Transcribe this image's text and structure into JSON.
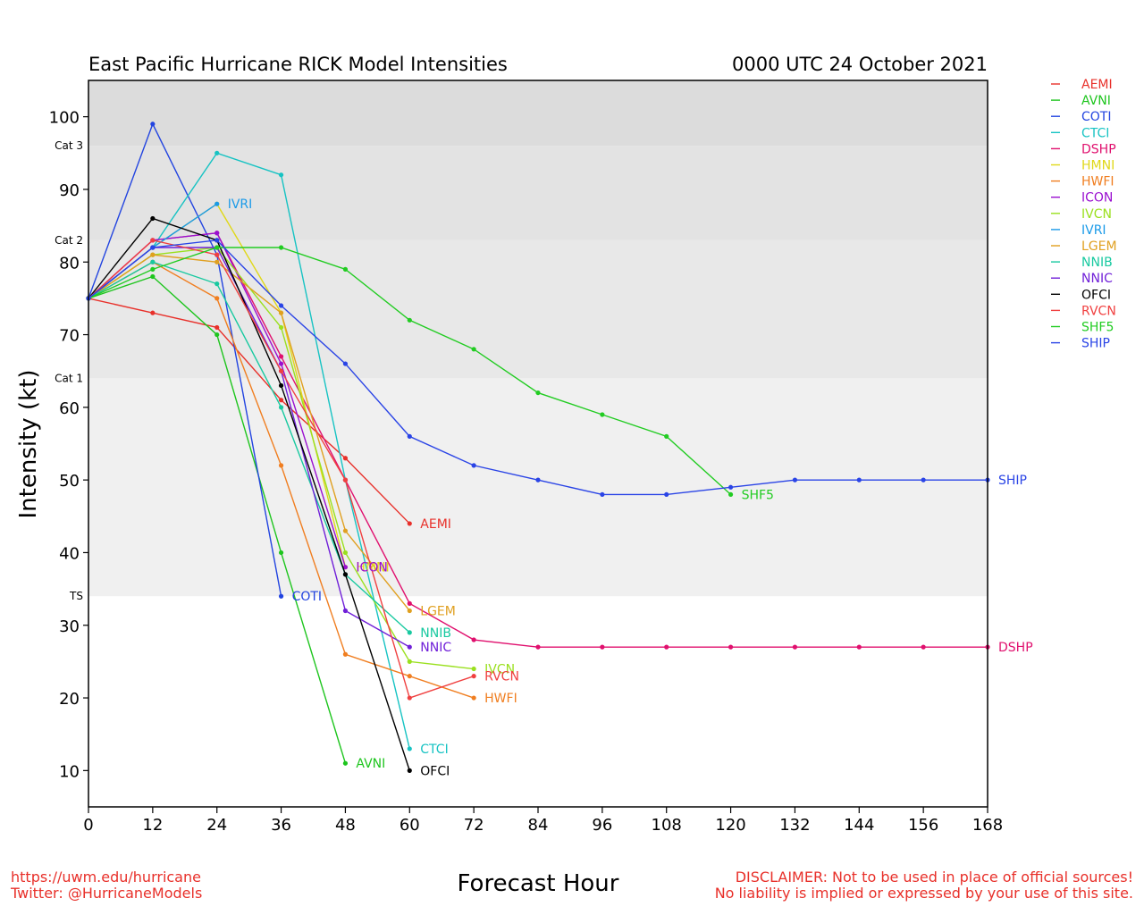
{
  "title_left": "East Pacific Hurricane RICK Model Intensities",
  "title_right": "0000 UTC 24 October 2021",
  "footer": {
    "url": "https://uwm.edu/hurricane",
    "twitter": "Twitter: @HurricaneModels",
    "disclaimer1": "DISCLAIMER: Not to be used in place of official sources!",
    "disclaimer2": "No liability is implied or expressed by your use of this site."
  },
  "chart_data": {
    "type": "line",
    "title": "East Pacific Hurricane RICK Model Intensities",
    "subtitle": "0000 UTC 24 October 2021",
    "xlabel": "Forecast Hour",
    "ylabel": "Intensity (kt)",
    "xlim": [
      0,
      168
    ],
    "ylim": [
      5,
      105
    ],
    "xticks": [
      0,
      12,
      24,
      36,
      48,
      60,
      72,
      84,
      96,
      108,
      120,
      132,
      144,
      156,
      168
    ],
    "yticks": [
      10,
      20,
      30,
      40,
      50,
      60,
      70,
      80,
      90,
      100
    ],
    "grid": false,
    "legend_position": "right, outside plot",
    "bands": [
      {
        "from": 5,
        "to": 34,
        "color": "#ffffff"
      },
      {
        "from": 34,
        "to": 64,
        "color": "#f0f0f0"
      },
      {
        "from": 64,
        "to": 83,
        "color": "#e8e8e8"
      },
      {
        "from": 83,
        "to": 96,
        "color": "#e3e3e3"
      },
      {
        "from": 96,
        "to": 105,
        "color": "#dcdcdc"
      }
    ],
    "category_labels": [
      {
        "label": "TS",
        "value": 34
      },
      {
        "label": "Cat 1",
        "value": 64
      },
      {
        "label": "Cat 2",
        "value": 83
      },
      {
        "label": "Cat 3",
        "value": 96
      }
    ],
    "series": [
      {
        "name": "AEMI",
        "color": "#e8302a",
        "x": [
          0,
          12,
          24,
          36,
          48,
          60
        ],
        "y": [
          75,
          73,
          71,
          61,
          53,
          44
        ]
      },
      {
        "name": "AVNI",
        "color": "#1ec51e",
        "x": [
          0,
          12,
          24,
          36,
          48
        ],
        "y": [
          75,
          78,
          70,
          40,
          11
        ]
      },
      {
        "name": "COTI",
        "color": "#2244e0",
        "x": [
          0,
          12,
          24,
          36
        ],
        "y": [
          75,
          99,
          81,
          34
        ]
      },
      {
        "name": "CTCI",
        "color": "#17c3c3",
        "x": [
          0,
          12,
          24,
          36,
          48,
          60
        ],
        "y": [
          75,
          82,
          95,
          92,
          50,
          13
        ]
      },
      {
        "name": "DSHP",
        "color": "#e0106e",
        "x": [
          0,
          12,
          24,
          36,
          48,
          60,
          72,
          84,
          96,
          108,
          120,
          132,
          144,
          156,
          168
        ],
        "y": [
          75,
          83,
          84,
          67,
          50,
          33,
          28,
          27,
          27,
          27,
          27,
          27,
          27,
          27,
          27
        ]
      },
      {
        "name": "HMNI",
        "color": "#e0d818",
        "x": [
          0,
          12,
          24,
          36,
          48
        ],
        "y": [
          75,
          82,
          88,
          73,
          38
        ]
      },
      {
        "name": "HWFI",
        "color": "#f07e20",
        "x": [
          0,
          12,
          24,
          36,
          48,
          60,
          72
        ],
        "y": [
          75,
          80,
          75,
          52,
          26,
          23,
          20
        ]
      },
      {
        "name": "ICON",
        "color": "#9a10d0",
        "x": [
          0,
          12,
          24,
          36,
          48
        ],
        "y": [
          75,
          83,
          84,
          66,
          38
        ]
      },
      {
        "name": "IVCN",
        "color": "#9ae01e",
        "x": [
          0,
          12,
          24,
          36,
          48,
          60,
          72
        ],
        "y": [
          75,
          81,
          82,
          71,
          40,
          25,
          24
        ]
      },
      {
        "name": "IVRI",
        "color": "#1a9ae8",
        "x": [
          0,
          12,
          24
        ],
        "y": [
          75,
          82,
          88
        ]
      },
      {
        "name": "LGEM",
        "color": "#e0a020",
        "x": [
          0,
          12,
          24,
          36,
          48,
          60
        ],
        "y": [
          75,
          81,
          80,
          73,
          43,
          32
        ]
      },
      {
        "name": "NNIB",
        "color": "#18c9a0",
        "x": [
          0,
          12,
          24,
          36,
          48,
          60
        ],
        "y": [
          75,
          80,
          77,
          60,
          37,
          29
        ]
      },
      {
        "name": "NNIC",
        "color": "#7020d8",
        "x": [
          0,
          12,
          24,
          36,
          48,
          60
        ],
        "y": [
          75,
          82,
          82,
          65,
          32,
          27
        ]
      },
      {
        "name": "OFCI",
        "color": "#000000",
        "x": [
          0,
          12,
          24,
          36,
          48,
          60
        ],
        "y": [
          75,
          86,
          83,
          63,
          37,
          10
        ]
      },
      {
        "name": "RVCN",
        "color": "#f04040",
        "x": [
          0,
          12,
          24,
          36,
          48,
          60,
          72
        ],
        "y": [
          75,
          83,
          81,
          65,
          50,
          20,
          23
        ]
      },
      {
        "name": "SHF5",
        "color": "#22cc22",
        "x": [
          0,
          12,
          24,
          36,
          48,
          60,
          72,
          84,
          96,
          108,
          120
        ],
        "y": [
          75,
          79,
          82,
          82,
          79,
          72,
          68,
          62,
          59,
          56,
          48
        ]
      },
      {
        "name": "SHIP",
        "color": "#2a44e6",
        "x": [
          0,
          12,
          24,
          36,
          48,
          60,
          72,
          84,
          96,
          108,
          120,
          132,
          144,
          156,
          168
        ],
        "y": [
          75,
          82,
          83,
          74,
          66,
          56,
          52,
          50,
          48,
          48,
          49,
          50,
          50,
          50,
          50
        ]
      }
    ],
    "end_labels": [
      {
        "series": "IVRI",
        "x": 24,
        "y": 88
      },
      {
        "series": "COTI",
        "x": 36,
        "y": 34
      },
      {
        "series": "AVNI",
        "x": 48,
        "y": 11
      },
      {
        "series": "HMNI",
        "x": 48,
        "y": 38
      },
      {
        "series": "ICON",
        "x": 48,
        "y": 38
      },
      {
        "series": "AEMI",
        "x": 60,
        "y": 44
      },
      {
        "series": "LGEM",
        "x": 60,
        "y": 32
      },
      {
        "series": "NNIB",
        "x": 60,
        "y": 29
      },
      {
        "series": "NNIC",
        "x": 60,
        "y": 27
      },
      {
        "series": "CTCI",
        "x": 60,
        "y": 13
      },
      {
        "series": "OFCI",
        "x": 60,
        "y": 10
      },
      {
        "series": "IVCN",
        "x": 72,
        "y": 24
      },
      {
        "series": "RVCN",
        "x": 72,
        "y": 23
      },
      {
        "series": "HWFI",
        "x": 72,
        "y": 20
      },
      {
        "series": "SHF5",
        "x": 120,
        "y": 48
      },
      {
        "series": "SHIP",
        "x": 168,
        "y": 50
      },
      {
        "series": "DSHP",
        "x": 168,
        "y": 27
      }
    ]
  }
}
